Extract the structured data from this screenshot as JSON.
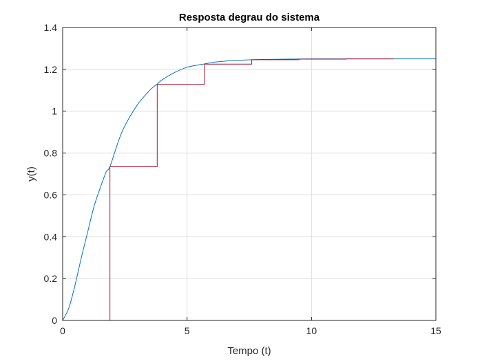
{
  "chart_data": {
    "type": "line",
    "title": "Resposta degrau do sistema",
    "xlabel": "Tempo (t)",
    "ylabel": "y(t)",
    "xlim": [
      0,
      15
    ],
    "ylim": [
      0,
      1.4
    ],
    "x_ticks": [
      0,
      5,
      10,
      15
    ],
    "y_ticks": [
      0,
      0.2,
      0.4,
      0.6,
      0.8,
      1,
      1.2,
      1.4
    ],
    "x_tick_labels": [
      "0",
      "5",
      "10",
      "15"
    ],
    "y_tick_labels": [
      "0",
      "0.2",
      "0.4",
      "0.6",
      "0.8",
      "1",
      "1.2",
      "1.4"
    ],
    "grid": true,
    "legend": "none",
    "series": [
      {
        "style": "continuous",
        "color": "#0072BD",
        "x": [
          0,
          0.25,
          0.5,
          0.75,
          1,
          1.25,
          1.5,
          1.75,
          1.9,
          2.25,
          2.5,
          3,
          3.5,
          3.8,
          4,
          4.5,
          5,
          5.5,
          5.7,
          6,
          6.5,
          7,
          7.6,
          8,
          9,
          9.5,
          10,
          11,
          12,
          13,
          14,
          15
        ],
        "y": [
          0,
          0.06,
          0.17,
          0.3,
          0.42,
          0.54,
          0.63,
          0.71,
          0.735,
          0.86,
          0.93,
          1.03,
          1.1,
          1.13,
          1.15,
          1.185,
          1.21,
          1.222,
          1.226,
          1.233,
          1.239,
          1.243,
          1.246,
          1.247,
          1.249,
          1.2495,
          1.25,
          1.25,
          1.25,
          1.25,
          1.25,
          1.25
        ]
      },
      {
        "style": "stairs",
        "color": "#A2142F",
        "x": [
          0,
          1.9,
          3.8,
          5.7,
          7.6,
          9.5,
          11.4,
          13.3
        ],
        "y": [
          0,
          0.735,
          1.128,
          1.225,
          1.246,
          1.249,
          1.25,
          1.25
        ]
      }
    ]
  }
}
